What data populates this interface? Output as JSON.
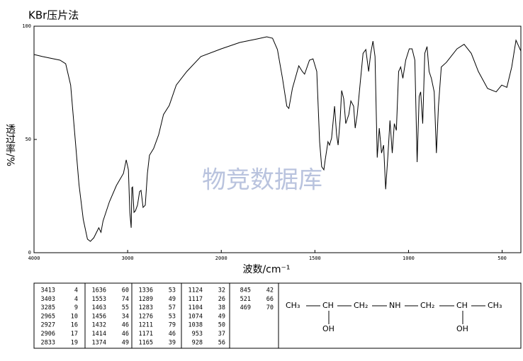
{
  "chart_data": {
    "type": "line",
    "title": "KBr压片法",
    "xlabel": "波数/cm⁻¹",
    "ylabel": "透过率/%",
    "watermark": "物竞数据库",
    "xlim": [
      4000,
      400
    ],
    "x_scale_break": 2000,
    "xticks": [
      4000,
      3000,
      2000,
      1500,
      1000,
      500
    ],
    "ylim": [
      0,
      100
    ],
    "yticks": [
      0,
      50,
      100
    ],
    "color": "#000000",
    "x": [
      4000,
      3910,
      3722,
      3662,
      3609,
      3564,
      3519,
      3474,
      3429,
      3398,
      3361,
      3308,
      3285,
      3263,
      3195,
      3120,
      3045,
      3015,
      2992,
      2977,
      2962,
      2955,
      2947,
      2932,
      2917,
      2895,
      2872,
      2857,
      2835,
      2812,
      2789,
      2767,
      2722,
      2669,
      2617,
      2556,
      2481,
      2368,
      2218,
      2000,
      1901,
      1806,
      1757,
      1726,
      1700,
      1673,
      1650,
      1639,
      1620,
      1586,
      1567,
      1555,
      1529,
      1510,
      1490,
      1475,
      1464,
      1452,
      1445,
      1430,
      1422,
      1411,
      1395,
      1384,
      1376,
      1365,
      1357,
      1346,
      1335,
      1319,
      1308,
      1293,
      1285,
      1274,
      1259,
      1243,
      1228,
      1213,
      1202,
      1190,
      1179,
      1167,
      1156,
      1144,
      1133,
      1122,
      1110,
      1099,
      1087,
      1076,
      1065,
      1053,
      1042,
      1030,
      1015,
      996,
      981,
      966,
      954,
      943,
      935,
      924,
      913,
      901,
      890,
      878,
      863,
      851,
      840,
      825,
      798,
      741,
      703,
      665,
      627,
      578,
      532,
      502,
      475,
      449,
      426,
      400
    ],
    "values": [
      87.5,
      86.6,
      85,
      83.4,
      74,
      52,
      30,
      14.7,
      6,
      5,
      6.6,
      11,
      9,
      14,
      22.5,
      29.7,
      35,
      41,
      36.6,
      17.8,
      11,
      28.7,
      29,
      17.8,
      18.5,
      21,
      27,
      27.5,
      20,
      21,
      35,
      43,
      46,
      52,
      61,
      65,
      74,
      80,
      86.6,
      90,
      92.8,
      94.4,
      95.3,
      94.7,
      89.7,
      77,
      64.7,
      63.7,
      72.5,
      82.5,
      80,
      78.8,
      85,
      85.6,
      80,
      49,
      38,
      36.6,
      41,
      49,
      47.5,
      50.6,
      64.7,
      52,
      47.5,
      59,
      71.6,
      68,
      57,
      61,
      67,
      64.7,
      55,
      61,
      74,
      88,
      89.7,
      80,
      88,
      93.4,
      86.6,
      42,
      55,
      44,
      47.5,
      28,
      43,
      58.4,
      44,
      57,
      54,
      80,
      82,
      77,
      85,
      90,
      90,
      85,
      40,
      69,
      71,
      57,
      88,
      91,
      80,
      77,
      71,
      44,
      64.7,
      82,
      84,
      90,
      92,
      88,
      80,
      72.5,
      71,
      74,
      73,
      82,
      93.8,
      89
    ]
  },
  "peak_table": {
    "groups": [
      [
        [
          3413,
          4
        ],
        [
          3403,
          4
        ],
        [
          3285,
          9
        ],
        [
          2965,
          10
        ],
        [
          2927,
          16
        ],
        [
          2906,
          17
        ],
        [
          2833,
          19
        ]
      ],
      [
        [
          1636,
          60
        ],
        [
          1553,
          74
        ],
        [
          1463,
          55
        ],
        [
          1456,
          34
        ],
        [
          1432,
          46
        ],
        [
          1414,
          46
        ],
        [
          1374,
          49
        ]
      ],
      [
        [
          1336,
          53
        ],
        [
          1289,
          49
        ],
        [
          1283,
          57
        ],
        [
          1276,
          53
        ],
        [
          1211,
          79
        ],
        [
          1171,
          46
        ],
        [
          1165,
          39
        ]
      ],
      [
        [
          1124,
          32
        ],
        [
          1117,
          26
        ],
        [
          1104,
          38
        ],
        [
          1074,
          49
        ],
        [
          1038,
          50
        ],
        [
          953,
          37
        ],
        [
          928,
          56
        ]
      ],
      [
        [
          845,
          42
        ],
        [
          521,
          66
        ],
        [
          469,
          70
        ]
      ]
    ]
  },
  "structure": {
    "chain": [
      "CH₃",
      "CH",
      "CH₂",
      "NH",
      "CH₂",
      "CH",
      "CH₃"
    ],
    "substituents": [
      "OH",
      "OH"
    ]
  }
}
